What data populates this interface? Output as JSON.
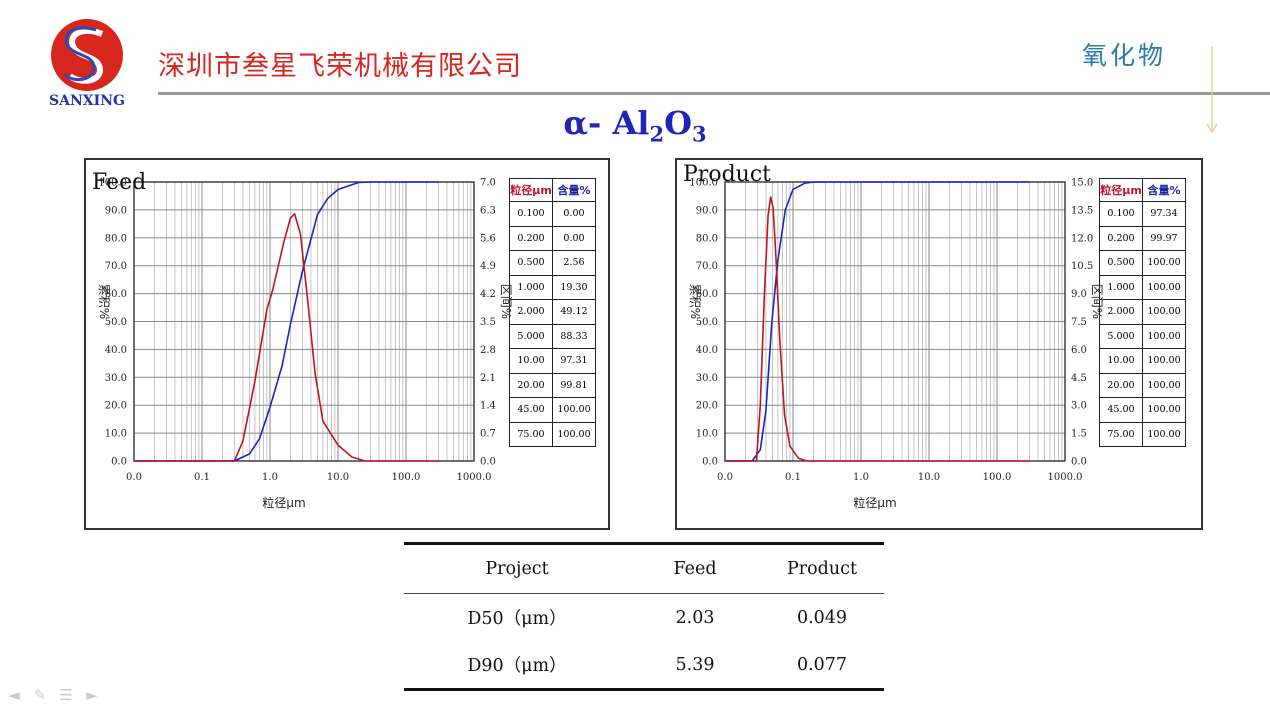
{
  "header": {
    "company": "深圳市叁星飞荣机械有限公司",
    "topic": "氧化物",
    "logo_text": "SANXING"
  },
  "title": {
    "main": "α- Al",
    "sub1": "2",
    "mid": "O",
    "sub2": "3"
  },
  "panels": [
    {
      "label": "Feed",
      "table": {
        "headers": [
          "粒径μm",
          "含量%"
        ],
        "rows": [
          [
            "0.100",
            "0.00"
          ],
          [
            "0.200",
            "0.00"
          ],
          [
            "0.500",
            "2.56"
          ],
          [
            "1.000",
            "19.30"
          ],
          [
            "2.000",
            "49.12"
          ],
          [
            "5.000",
            "88.33"
          ],
          [
            "10.00",
            "97.31"
          ],
          [
            "20.00",
            "99.81"
          ],
          [
            "45.00",
            "100.00"
          ],
          [
            "75.00",
            "100.00"
          ]
        ]
      }
    },
    {
      "label": "Product",
      "table": {
        "headers": [
          "粒径μm",
          "含量%"
        ],
        "rows": [
          [
            "0.100",
            "97.34"
          ],
          [
            "0.200",
            "99.97"
          ],
          [
            "0.500",
            "100.00"
          ],
          [
            "1.000",
            "100.00"
          ],
          [
            "2.000",
            "100.00"
          ],
          [
            "5.000",
            "100.00"
          ],
          [
            "10.00",
            "100.00"
          ],
          [
            "20.00",
            "100.00"
          ],
          [
            "45.00",
            "100.00"
          ],
          [
            "75.00",
            "100.00"
          ]
        ]
      }
    }
  ],
  "summary_table": {
    "headers": [
      "Project",
      "Feed",
      "Product"
    ],
    "rows": [
      [
        "D50（μm）",
        "2.03",
        "0.049"
      ],
      [
        "D90（μm）",
        "5.39",
        "0.077"
      ]
    ]
  },
  "chart_data": [
    {
      "type": "line",
      "title": "Feed",
      "x_scale": "log",
      "xlabel": "粒径μm",
      "ylabel": "累积%",
      "y2label": "区间%",
      "x_ticks": [
        "0.0",
        "0.1",
        "1.0",
        "10.0",
        "100.0",
        "1000.0"
      ],
      "y_ticks": [
        "0.0",
        "10.0",
        "20.0",
        "30.0",
        "40.0",
        "50.0",
        "60.0",
        "70.0",
        "80.0",
        "90.0",
        "100.0"
      ],
      "y_top_tick": "100.0",
      "y2_ticks": [
        "0.0",
        "0.7",
        "1.4",
        "2.1",
        "2.8",
        "3.5",
        "4.2",
        "4.9",
        "5.6",
        "6.3",
        "7.0"
      ],
      "ylim": [
        0,
        100
      ],
      "y2lim": [
        0,
        7.0
      ],
      "grid": true,
      "series": [
        {
          "name": "累积%",
          "color": "#1a22c8",
          "axis": "left",
          "points": [
            [
              0.01,
              0
            ],
            [
              0.3,
              0
            ],
            [
              0.5,
              2.56
            ],
            [
              0.7,
              8
            ],
            [
              1.0,
              19.3
            ],
            [
              1.5,
              34
            ],
            [
              2.0,
              49.12
            ],
            [
              3.0,
              68
            ],
            [
              5.0,
              88.33
            ],
            [
              7.0,
              94
            ],
            [
              10.0,
              97.31
            ],
            [
              20.0,
              99.81
            ],
            [
              30,
              100
            ],
            [
              300,
              100
            ]
          ]
        },
        {
          "name": "区间%",
          "color": "#c0141e",
          "axis": "right",
          "points": [
            [
              0.01,
              0
            ],
            [
              0.3,
              0
            ],
            [
              0.4,
              0.5
            ],
            [
              0.6,
              2.0
            ],
            [
              0.9,
              3.8
            ],
            [
              1.1,
              4.3
            ],
            [
              1.6,
              5.5
            ],
            [
              2.0,
              6.1
            ],
            [
              2.3,
              6.2
            ],
            [
              2.8,
              5.7
            ],
            [
              3.6,
              4.0
            ],
            [
              4.6,
              2.2
            ],
            [
              6.0,
              1.0
            ],
            [
              10,
              0.4
            ],
            [
              16,
              0.1
            ],
            [
              25,
              0
            ],
            [
              300,
              0
            ]
          ]
        }
      ]
    },
    {
      "type": "line",
      "title": "Product",
      "x_scale": "log",
      "xlabel": "粒径μm",
      "ylabel": "累积%",
      "y2label": "区间%",
      "x_ticks": [
        "0.0",
        "0.1",
        "1.0",
        "10.0",
        "100.0",
        "1000.0"
      ],
      "y_ticks": [
        "0.0",
        "10.0",
        "20.0",
        "30.0",
        "40.0",
        "50.0",
        "60.0",
        "70.0",
        "80.0",
        "90.0",
        "100.0"
      ],
      "y_top_tick": "100.0",
      "y2_ticks": [
        "0.0",
        "1.5",
        "3.0",
        "4.5",
        "6.0",
        "7.5",
        "9.0",
        "10.5",
        "12.0",
        "13.5",
        "15.0"
      ],
      "ylim": [
        0,
        100
      ],
      "y2lim": [
        0,
        15.0
      ],
      "grid": true,
      "series": [
        {
          "name": "累积%",
          "color": "#1a22c8",
          "axis": "left",
          "points": [
            [
              0.01,
              0
            ],
            [
              0.025,
              0
            ],
            [
              0.033,
              4
            ],
            [
              0.04,
              18
            ],
            [
              0.049,
              50
            ],
            [
              0.06,
              72
            ],
            [
              0.077,
              90
            ],
            [
              0.1,
              97.34
            ],
            [
              0.15,
              99.6
            ],
            [
              0.2,
              99.97
            ],
            [
              0.3,
              100
            ],
            [
              300,
              100
            ]
          ]
        },
        {
          "name": "区间%",
          "color": "#c0141e",
          "axis": "right",
          "points": [
            [
              0.01,
              0
            ],
            [
              0.029,
              0
            ],
            [
              0.033,
              3
            ],
            [
              0.038,
              9
            ],
            [
              0.043,
              13.2
            ],
            [
              0.047,
              14.2
            ],
            [
              0.051,
              13.6
            ],
            [
              0.056,
              11
            ],
            [
              0.064,
              6.5
            ],
            [
              0.075,
              2.5
            ],
            [
              0.09,
              0.8
            ],
            [
              0.12,
              0.15
            ],
            [
              0.16,
              0
            ],
            [
              300,
              0
            ]
          ]
        }
      ]
    }
  ],
  "nav": {
    "icons": [
      "arrow-left-icon",
      "pen-icon",
      "menu-icon",
      "arrow-right-icon"
    ]
  }
}
